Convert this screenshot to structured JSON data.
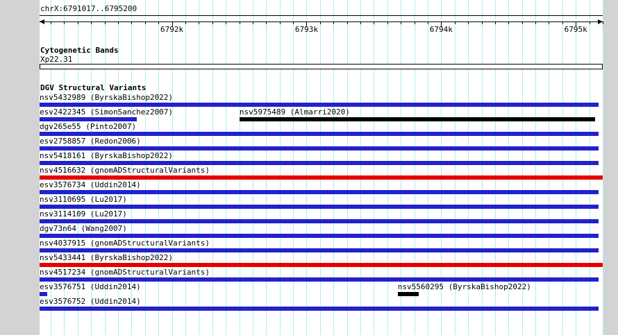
{
  "colors": {
    "blue": "#2222cc",
    "red": "#e80000",
    "black": "#000000",
    "grid": "#aaeeee"
  },
  "region": {
    "label": "chrX:6791017..6795200",
    "start": 6791017,
    "end": 6795200
  },
  "ruler": {
    "minor_step_bp": 100,
    "major_ticks": [
      {
        "label": "6792k",
        "bp": 6792000
      },
      {
        "label": "6793k",
        "bp": 6793000
      },
      {
        "label": "6794k",
        "bp": 6794000
      },
      {
        "label": "6795k",
        "bp": 6795000
      }
    ]
  },
  "cytobands": {
    "title": "Cytogenetic Bands",
    "band_label": "Xp22.31"
  },
  "dgv": {
    "title": "DGV Structural Variants",
    "rows": [
      {
        "items": [
          {
            "label": "nsv5432989 (ByrskaBishop2022)",
            "color": "blue",
            "left_pct": 0,
            "width_pct": 99.3
          }
        ]
      },
      {
        "items": [
          {
            "label": "esv2422345 (SimonSanchez2007)",
            "color": "blue",
            "left_pct": 0,
            "width_pct": 17.3
          },
          {
            "label": "nsv5975489 (Almarri2020)",
            "color": "black",
            "left_pct": 35.5,
            "width_pct": 63.1
          }
        ]
      },
      {
        "items": [
          {
            "label": "dgv265e55 (Pinto2007)",
            "color": "blue",
            "left_pct": 0,
            "width_pct": 99.3
          }
        ]
      },
      {
        "items": [
          {
            "label": "esv2758857 (Redon2006)",
            "color": "blue",
            "left_pct": 0,
            "width_pct": 99.3
          }
        ]
      },
      {
        "items": [
          {
            "label": "nsv5418161 (ByrskaBishop2022)",
            "color": "blue",
            "left_pct": 0,
            "width_pct": 99.3
          }
        ]
      },
      {
        "items": [
          {
            "label": "nsv4516632 (gnomADStructuralVariants)",
            "color": "red",
            "left_pct": 0,
            "width_pct": 100
          }
        ]
      },
      {
        "items": [
          {
            "label": "esv3576734 (Uddin2014)",
            "color": "blue",
            "left_pct": 0,
            "width_pct": 99.3
          }
        ]
      },
      {
        "items": [
          {
            "label": "nsv3110695 (Lu2017)",
            "color": "blue",
            "left_pct": 0,
            "width_pct": 99.3
          }
        ]
      },
      {
        "items": [
          {
            "label": "nsv3114109 (Lu2017)",
            "color": "blue",
            "left_pct": 0,
            "width_pct": 99.3
          }
        ]
      },
      {
        "items": [
          {
            "label": "dgv73n64 (Wang2007)",
            "color": "blue",
            "left_pct": 0,
            "width_pct": 99.3
          }
        ]
      },
      {
        "items": [
          {
            "label": "nsv4037915 (gnomADStructuralVariants)",
            "color": "blue",
            "left_pct": 0,
            "width_pct": 99.3
          }
        ]
      },
      {
        "items": [
          {
            "label": "nsv5433441 (ByrskaBishop2022)",
            "color": "red",
            "left_pct": 0,
            "width_pct": 100
          }
        ]
      },
      {
        "items": [
          {
            "label": "nsv4517234 (gnomADStructuralVariants)",
            "color": "blue",
            "left_pct": 0,
            "width_pct": 99.3
          }
        ]
      },
      {
        "items": [
          {
            "label": "esv3576751 (Uddin2014)",
            "color": "blue",
            "left_pct": 0,
            "width_pct": 1.4
          },
          {
            "label": "nsv5560295 (ByrskaBishop2022)",
            "color": "black",
            "left_pct": 63.6,
            "width_pct": 3.7
          }
        ]
      },
      {
        "items": [
          {
            "label": "esv3576752 (Uddin2014)",
            "color": "blue",
            "left_pct": 0,
            "width_pct": 99.3
          }
        ]
      }
    ]
  }
}
